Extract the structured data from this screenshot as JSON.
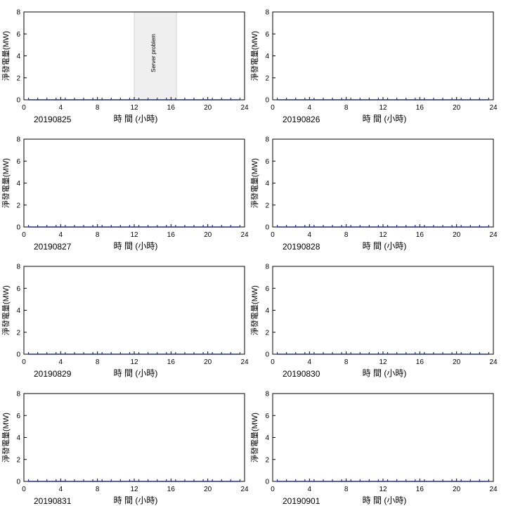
{
  "chart_data": [
    {
      "type": "line",
      "date_label": "20190825",
      "xlabel": "時 間 (小時)",
      "ylabel": "淨發電量(MW)",
      "xlim": [
        0,
        24
      ],
      "ylim": [
        0,
        8
      ],
      "xticks": [
        "0",
        "4",
        "8",
        "12",
        "16",
        "20",
        "24"
      ],
      "yticks": [
        "0",
        "2",
        "4",
        "6",
        "8"
      ],
      "series": [
        {
          "x": [
            0.5,
            1.5,
            2.5,
            3.5,
            4.5,
            5.5,
            6.5,
            7.5,
            8.5,
            9.5,
            10.5,
            11.5,
            12.5,
            13.5,
            14.5,
            15.5,
            16.5,
            17.5,
            18.5,
            19.5,
            20.5,
            21.5,
            22.5,
            23.5
          ],
          "y": [
            0,
            0,
            0,
            0,
            0,
            0,
            0,
            0,
            0,
            0,
            0,
            0,
            0,
            0,
            0,
            0,
            0,
            0,
            0,
            0,
            0,
            0,
            0,
            0
          ]
        }
      ],
      "shaded_region": {
        "x": [
          12,
          16.6
        ],
        "label": "Server problem"
      },
      "colors": {
        "line": "#1f2a8a",
        "region": "#efefef"
      }
    },
    {
      "type": "line",
      "date_label": "20190826",
      "xlabel": "時 間 (小時)",
      "ylabel": "淨發電量(MW)",
      "xlim": [
        0,
        24
      ],
      "ylim": [
        0,
        8
      ],
      "xticks": [
        "0",
        "4",
        "8",
        "12",
        "16",
        "20",
        "24"
      ],
      "yticks": [
        "0",
        "2",
        "4",
        "6",
        "8"
      ],
      "series": [
        {
          "x": [
            0.5,
            1.5,
            2.5,
            3.5,
            4.5,
            5.5,
            6.5,
            7.5,
            8.5,
            9.5,
            10.5,
            11.5,
            12.5,
            13.5,
            14.5,
            15.5,
            16.5,
            17.5,
            18.5,
            19.5,
            20.5,
            21.5,
            22.5,
            23.5
          ],
          "y": [
            0,
            0,
            0,
            0,
            0,
            0,
            0,
            0,
            0,
            0,
            0,
            0,
            0,
            0,
            0,
            0,
            0,
            0,
            0,
            0,
            0,
            0,
            0,
            0
          ]
        }
      ],
      "colors": {
        "line": "#1f2a8a"
      }
    },
    {
      "type": "line",
      "date_label": "20190827",
      "xlabel": "時 間 (小時)",
      "ylabel": "淨發電量(MW)",
      "xlim": [
        0,
        24
      ],
      "ylim": [
        0,
        8
      ],
      "xticks": [
        "0",
        "4",
        "8",
        "12",
        "16",
        "20",
        "24"
      ],
      "yticks": [
        "0",
        "2",
        "4",
        "6",
        "8"
      ],
      "series": [
        {
          "x": [
            0.5,
            1.5,
            2.5,
            3.5,
            4.5,
            5.5,
            6.5,
            7.5,
            8.5,
            9.5,
            10.5,
            11.5,
            12.5,
            13.5,
            14.5,
            15.5,
            16.5,
            17.5,
            18.5,
            19.5,
            20.5,
            21.5,
            22.5,
            23.5
          ],
          "y": [
            0,
            0,
            0,
            0,
            0,
            0,
            0,
            0,
            0,
            0,
            0,
            0,
            0,
            0,
            0,
            0,
            0,
            0,
            0,
            0,
            0,
            0,
            0,
            0
          ]
        }
      ],
      "colors": {
        "line": "#1f2a8a"
      }
    },
    {
      "type": "line",
      "date_label": "20190828",
      "xlabel": "時 間 (小時)",
      "ylabel": "淨發電量(MW)",
      "xlim": [
        0,
        24
      ],
      "ylim": [
        0,
        8
      ],
      "xticks": [
        "0",
        "4",
        "8",
        "12",
        "16",
        "20",
        "24"
      ],
      "yticks": [
        "0",
        "2",
        "4",
        "6",
        "8"
      ],
      "series": [
        {
          "x": [
            0.5,
            1.5,
            2.5,
            3.5,
            4.5,
            5.5,
            6.5,
            7.5,
            8.5,
            9.5,
            10.5,
            11.5,
            12.5,
            13.5,
            14.5,
            15.5,
            16.5,
            17.5,
            18.5,
            19.5,
            20.5,
            21.5,
            22.5,
            23.5
          ],
          "y": [
            0,
            0,
            0,
            0,
            0,
            0,
            0,
            0,
            0,
            0,
            0,
            0,
            0,
            0,
            0,
            0,
            0,
            0,
            0,
            0,
            0,
            0,
            0,
            0
          ]
        }
      ],
      "colors": {
        "line": "#1f2a8a"
      }
    },
    {
      "type": "line",
      "date_label": "20190829",
      "xlabel": "時 間 (小時)",
      "ylabel": "淨發電量(MW)",
      "xlim": [
        0,
        24
      ],
      "ylim": [
        0,
        8
      ],
      "xticks": [
        "0",
        "4",
        "8",
        "12",
        "16",
        "20",
        "24"
      ],
      "yticks": [
        "0",
        "2",
        "4",
        "6",
        "8"
      ],
      "series": [
        {
          "x": [
            0.5,
            1.5,
            2.5,
            3.5,
            4.5,
            5.5,
            6.5,
            7.5,
            8.5,
            9.5,
            10.5,
            11.5,
            12.5,
            13.5,
            14.5,
            15.5,
            16.5,
            17.5,
            18.5,
            19.5,
            20.5,
            21.5,
            22.5,
            23.5
          ],
          "y": [
            0,
            0,
            0,
            0,
            0,
            0,
            0,
            0,
            0,
            0,
            0,
            0,
            0,
            0,
            0,
            0,
            0,
            0,
            0,
            0,
            0,
            0,
            0,
            0
          ]
        }
      ],
      "colors": {
        "line": "#1f2a8a"
      }
    },
    {
      "type": "line",
      "date_label": "20190830",
      "xlabel": "時 間 (小時)",
      "ylabel": "淨發電量(MW)",
      "xlim": [
        0,
        24
      ],
      "ylim": [
        0,
        8
      ],
      "xticks": [
        "0",
        "4",
        "8",
        "12",
        "16",
        "20",
        "24"
      ],
      "yticks": [
        "0",
        "2",
        "4",
        "6",
        "8"
      ],
      "series": [
        {
          "x": [
            0.5,
            1.5,
            2.5,
            3.5,
            4.5,
            5.5,
            6.5,
            7.5,
            8.5,
            9.5,
            10.5,
            11.5,
            12.5,
            13.5,
            14.5,
            15.5,
            16.5,
            17.5,
            18.5,
            19.5,
            20.5,
            21.5,
            22.5,
            23.5
          ],
          "y": [
            0,
            0,
            0,
            0,
            0,
            0,
            0,
            0,
            0,
            0,
            0,
            0,
            0,
            0,
            0,
            0,
            0,
            0,
            0,
            0,
            0,
            0,
            0,
            0
          ]
        }
      ],
      "colors": {
        "line": "#1f2a8a"
      }
    },
    {
      "type": "line",
      "date_label": "20190831",
      "xlabel": "時 間 (小時)",
      "ylabel": "淨發電量(MW)",
      "xlim": [
        0,
        24
      ],
      "ylim": [
        0,
        8
      ],
      "xticks": [
        "0",
        "4",
        "8",
        "12",
        "16",
        "20",
        "24"
      ],
      "yticks": [
        "0",
        "2",
        "4",
        "6",
        "8"
      ],
      "series": [
        {
          "x": [
            0.5,
            1.5,
            2.5,
            3.5,
            4.5,
            5.5,
            6.5,
            7.5,
            8.5,
            9.5,
            10.5,
            11.5,
            12.5,
            13.5,
            14.5,
            15.5,
            16.5,
            17.5,
            18.5,
            19.5,
            20.5,
            21.5,
            22.5,
            23.5
          ],
          "y": [
            0,
            0,
            0,
            0,
            0,
            0,
            0,
            0,
            0,
            0,
            0,
            0,
            0,
            0,
            0,
            0,
            0,
            0,
            0,
            0,
            0,
            0,
            0,
            0
          ]
        }
      ],
      "colors": {
        "line": "#1f2a8a"
      }
    },
    {
      "type": "line",
      "date_label": "20190901",
      "xlabel": "時 間 (小時)",
      "ylabel": "淨發電量(MW)",
      "xlim": [
        0,
        24
      ],
      "ylim": [
        0,
        8
      ],
      "xticks": [
        "0",
        "4",
        "8",
        "12",
        "16",
        "20",
        "24"
      ],
      "yticks": [
        "0",
        "2",
        "4",
        "6",
        "8"
      ],
      "series": [
        {
          "x": [
            0.5,
            1.5,
            2.5,
            3.5,
            4.5,
            5.5,
            6.5,
            7.5,
            8.5,
            9.5,
            10.5,
            11.5,
            12.5,
            13.5,
            14.5,
            15.5,
            16.5,
            17.5,
            18.5,
            19.5,
            20.5,
            21.5,
            22.5,
            23.5
          ],
          "y": [
            0,
            0,
            0,
            0,
            0,
            0,
            0,
            0,
            0,
            0,
            0,
            0,
            0,
            0,
            0,
            0,
            0,
            0,
            0,
            0,
            0,
            0,
            0,
            0
          ]
        }
      ],
      "colors": {
        "line": "#1f2a8a"
      }
    }
  ]
}
